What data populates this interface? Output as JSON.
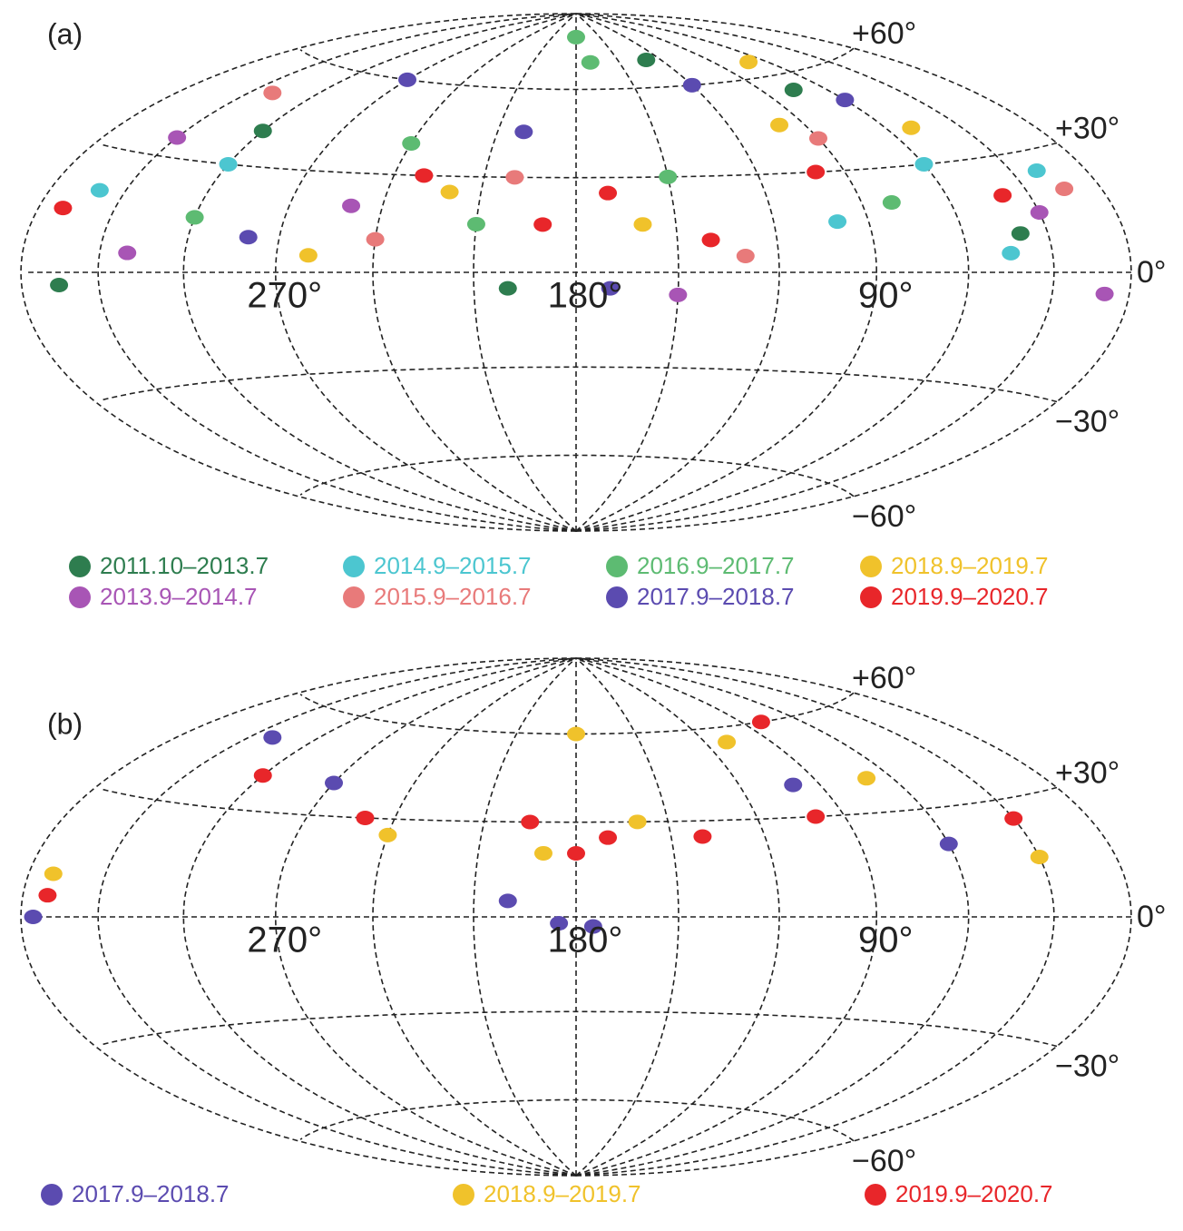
{
  "panels": [
    {
      "label": "(a)",
      "lat_ticks": [
        {
          "value": 60,
          "label": "+60°"
        },
        {
          "value": 30,
          "label": "+30°"
        },
        {
          "value": 0,
          "label": "0°"
        },
        {
          "value": -30,
          "label": "−30°"
        },
        {
          "value": -60,
          "label": "−60°"
        }
      ],
      "lon_ticks": [
        {
          "value": 270,
          "label": "270°"
        },
        {
          "value": 180,
          "label": "180°"
        },
        {
          "value": 90,
          "label": "90°"
        }
      ],
      "series": [
        {
          "name": "2011.10–2013.7",
          "color": "#2e7d4f",
          "fields": [
            [
              75,
              55
            ],
            [
              300,
              40
            ],
            [
              345,
              -3
            ],
            [
              40,
              10
            ],
            [
              130,
              70
            ],
            [
              200,
              -5
            ]
          ]
        },
        {
          "name": "2013.9–2014.7",
          "color": "#a855b5",
          "fields": [
            [
              330,
              35
            ],
            [
              320,
              5
            ],
            [
              150,
              -7
            ],
            [
              30,
              15
            ],
            [
              10,
              -5
            ],
            [
              250,
              20
            ]
          ]
        },
        {
          "name": "2014.9–2015.7",
          "color": "#4cc6d0",
          "fields": [
            [
              300,
              30
            ],
            [
              20,
              25
            ],
            [
              60,
              30
            ],
            [
              100,
              15
            ],
            [
              340,
              20
            ],
            [
              45,
              5
            ]
          ]
        },
        {
          "name": "2015.9–2016.7",
          "color": "#e87a7a",
          "fields": [
            [
              90,
              40
            ],
            [
              240,
              10
            ],
            [
              320,
              50
            ],
            [
              15,
              20
            ],
            [
              200,
              30
            ],
            [
              130,
              5
            ]
          ]
        },
        {
          "name": "2016.9–2017.7",
          "color": "#5dbb72",
          "fields": [
            [
              170,
              70
            ],
            [
              180,
              80
            ],
            [
              240,
              40
            ],
            [
              80,
              20
            ],
            [
              300,
              15
            ],
            [
              150,
              30
            ],
            [
              210,
              15
            ]
          ]
        },
        {
          "name": "2017.9–2018.7",
          "color": "#5b4bb0",
          "fields": [
            [
              120,
              60
            ],
            [
              270,
              60
            ],
            [
              170,
              -5
            ],
            [
              60,
              50
            ],
            [
              200,
              45
            ],
            [
              280,
              10
            ]
          ]
        },
        {
          "name": "2018.9–2019.7",
          "color": "#f0c22b",
          "fields": [
            [
              70,
              65
            ],
            [
              220,
              25
            ],
            [
              160,
              15
            ],
            [
              50,
              40
            ],
            [
              100,
              45
            ],
            [
              260,
              5
            ]
          ]
        },
        {
          "name": "2019.9–2020.7",
          "color": "#e8262a",
          "fields": [
            [
              190,
              15
            ],
            [
              170,
              25
            ],
            [
              100,
              30
            ],
            [
              40,
              20
            ],
            [
              230,
              30
            ],
            [
              350,
              15
            ],
            [
              140,
              10
            ]
          ]
        }
      ]
    },
    {
      "label": "(b)",
      "lat_ticks": [
        {
          "value": 60,
          "label": "+60°"
        },
        {
          "value": 30,
          "label": "+30°"
        },
        {
          "value": 0,
          "label": "0°"
        },
        {
          "value": -30,
          "label": "−30°"
        },
        {
          "value": -60,
          "label": "−60°"
        }
      ],
      "lon_ticks": [
        {
          "value": 270,
          "label": "270°"
        },
        {
          "value": 180,
          "label": "180°"
        },
        {
          "value": 90,
          "label": "90°"
        }
      ],
      "series": [
        {
          "name": "2017.9–2018.7",
          "color": "#5b4bb0",
          "fields": [
            [
              185,
              -2
            ],
            [
              175,
              -3
            ],
            [
              200,
              5
            ],
            [
              320,
              50
            ],
            [
              100,
              40
            ],
            [
              270,
              40
            ],
            [
              355,
              0
            ],
            [
              60,
              20
            ]
          ]
        },
        {
          "name": "2018.9–2019.7",
          "color": "#f0c22b",
          "fields": [
            [
              190,
              20
            ],
            [
              160,
              30
            ],
            [
              240,
              25
            ],
            [
              70,
              40
            ],
            [
              110,
              55
            ],
            [
              180,
              60
            ],
            [
              30,
              15
            ],
            [
              350,
              10
            ]
          ]
        },
        {
          "name": "2019.9–2020.7",
          "color": "#e8262a",
          "fields": [
            [
              180,
              20
            ],
            [
              170,
              25
            ],
            [
              195,
              30
            ],
            [
              140,
              25
            ],
            [
              100,
              30
            ],
            [
              250,
              30
            ],
            [
              80,
              60
            ],
            [
              300,
              40
            ],
            [
              30,
              25
            ],
            [
              350,
              5
            ]
          ]
        }
      ]
    }
  ]
}
